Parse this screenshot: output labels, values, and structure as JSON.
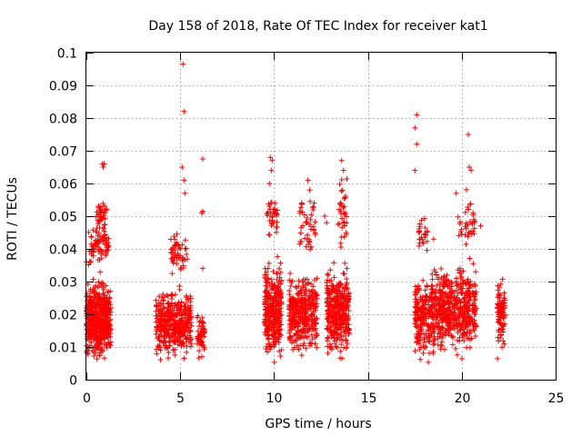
{
  "chart_data": {
    "type": "scatter",
    "title": "Day 158 of 2018, Rate Of TEC Index for receiver kat1",
    "xlabel": "GPS time / hours",
    "ylabel": "ROTI / TECUs",
    "xlim": [
      0,
      25
    ],
    "ylim": [
      0,
      0.1
    ],
    "xticks": [
      0,
      5,
      10,
      15,
      20,
      25
    ],
    "xtick_labels": [
      "0",
      "5",
      "10",
      "15",
      "20",
      "25"
    ],
    "yticks": [
      0,
      0.01,
      0.02,
      0.03,
      0.04,
      0.05,
      0.06,
      0.07,
      0.08,
      0.09,
      0.1
    ],
    "ytick_labels": [
      "0",
      "0.01",
      "0.02",
      "0.03",
      "0.04",
      "0.05",
      "0.06",
      "0.07",
      "0.08",
      "0.09",
      "0.1"
    ],
    "grid": true,
    "marker": "+",
    "color": "#ff0000",
    "clusters": [
      {
        "x": [
          0.0,
          1.3
        ],
        "y": [
          0.004,
          0.032
        ],
        "n": 520
      },
      {
        "x": [
          0.1,
          1.2
        ],
        "y": [
          0.032,
          0.05
        ],
        "n": 70
      },
      {
        "x": [
          0.5,
          1.1
        ],
        "y": [
          0.04,
          0.06
        ],
        "n": 40
      },
      {
        "x": [
          3.7,
          5.6
        ],
        "y": [
          0.004,
          0.03
        ],
        "n": 380
      },
      {
        "x": [
          4.5,
          5.4
        ],
        "y": [
          0.03,
          0.048
        ],
        "n": 50
      },
      {
        "x": [
          5.9,
          6.3
        ],
        "y": [
          0.005,
          0.022
        ],
        "n": 60
      },
      {
        "x": [
          9.5,
          10.4
        ],
        "y": [
          0.003,
          0.04
        ],
        "n": 320
      },
      {
        "x": [
          9.6,
          10.2
        ],
        "y": [
          0.04,
          0.06
        ],
        "n": 35
      },
      {
        "x": [
          10.8,
          12.3
        ],
        "y": [
          0.006,
          0.034
        ],
        "n": 360
      },
      {
        "x": [
          11.3,
          12.2
        ],
        "y": [
          0.034,
          0.06
        ],
        "n": 45
      },
      {
        "x": [
          12.8,
          14.0
        ],
        "y": [
          0.004,
          0.038
        ],
        "n": 360
      },
      {
        "x": [
          13.4,
          13.9
        ],
        "y": [
          0.038,
          0.066
        ],
        "n": 35
      },
      {
        "x": [
          17.5,
          18.3
        ],
        "y": [
          0.003,
          0.035
        ],
        "n": 180
      },
      {
        "x": [
          17.7,
          18.2
        ],
        "y": [
          0.036,
          0.052
        ],
        "n": 25
      },
      {
        "x": [
          18.3,
          20.8
        ],
        "y": [
          0.005,
          0.038
        ],
        "n": 560
      },
      {
        "x": [
          19.8,
          20.7
        ],
        "y": [
          0.038,
          0.06
        ],
        "n": 35
      },
      {
        "x": [
          21.9,
          22.3
        ],
        "y": [
          0.005,
          0.034
        ],
        "n": 90
      }
    ],
    "points": [
      {
        "x": 0.2,
        "y": 0.036
      },
      {
        "x": 0.0,
        "y": 0.036
      },
      {
        "x": 0.85,
        "y": 0.066
      },
      {
        "x": 0.9,
        "y": 0.065
      },
      {
        "x": 0.95,
        "y": 0.066
      },
      {
        "x": 5.15,
        "y": 0.0965
      },
      {
        "x": 5.2,
        "y": 0.082
      },
      {
        "x": 5.1,
        "y": 0.065
      },
      {
        "x": 5.2,
        "y": 0.061
      },
      {
        "x": 5.25,
        "y": 0.057
      },
      {
        "x": 6.2,
        "y": 0.0675
      },
      {
        "x": 6.15,
        "y": 0.051
      },
      {
        "x": 6.2,
        "y": 0.0515
      },
      {
        "x": 6.2,
        "y": 0.034
      },
      {
        "x": 9.8,
        "y": 0.068
      },
      {
        "x": 9.9,
        "y": 0.067
      },
      {
        "x": 9.85,
        "y": 0.064
      },
      {
        "x": 9.75,
        "y": 0.06
      },
      {
        "x": 11.8,
        "y": 0.061
      },
      {
        "x": 11.9,
        "y": 0.058
      },
      {
        "x": 12.7,
        "y": 0.05
      },
      {
        "x": 12.8,
        "y": 0.048
      },
      {
        "x": 13.6,
        "y": 0.067
      },
      {
        "x": 13.7,
        "y": 0.064
      },
      {
        "x": 17.6,
        "y": 0.081
      },
      {
        "x": 17.5,
        "y": 0.077
      },
      {
        "x": 17.6,
        "y": 0.072
      },
      {
        "x": 17.5,
        "y": 0.064
      },
      {
        "x": 20.35,
        "y": 0.075
      },
      {
        "x": 20.4,
        "y": 0.065
      },
      {
        "x": 20.5,
        "y": 0.064
      },
      {
        "x": 19.7,
        "y": 0.057
      },
      {
        "x": 20.6,
        "y": 0.051
      },
      {
        "x": 21.0,
        "y": 0.047
      },
      {
        "x": 18.5,
        "y": 0.043
      }
    ]
  }
}
